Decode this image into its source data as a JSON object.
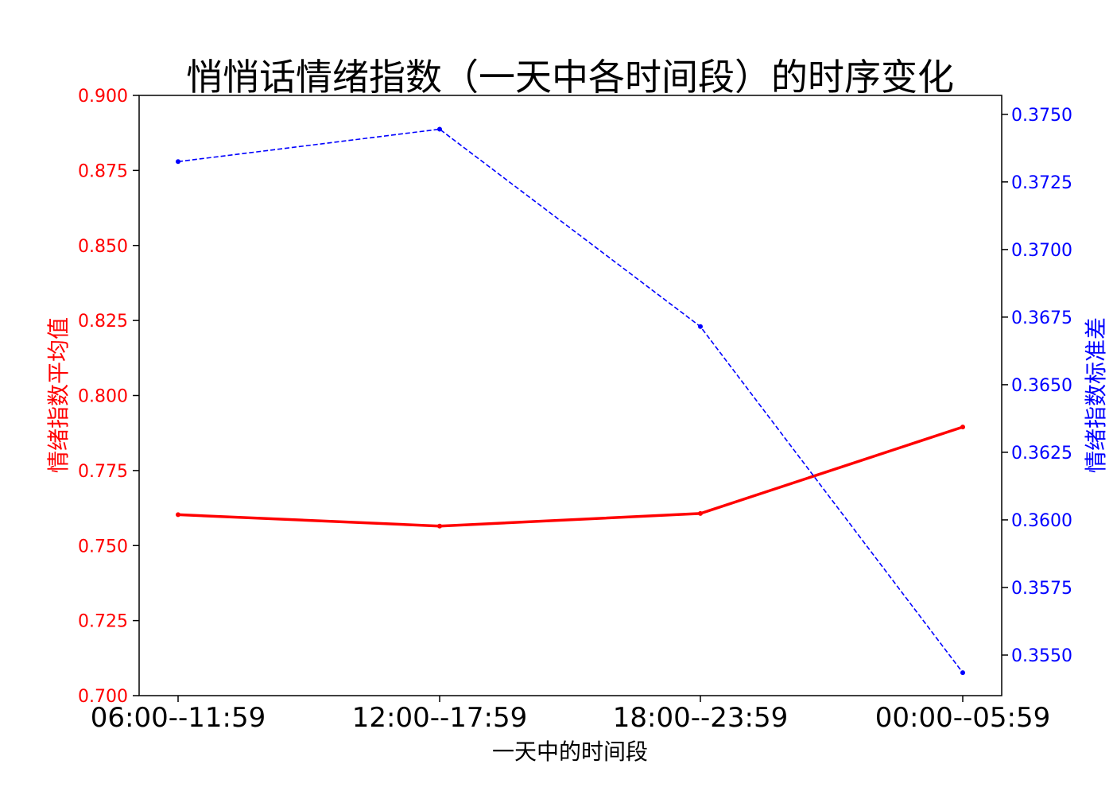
{
  "chart_data": {
    "type": "line",
    "title": "悄悄话情绪指数（一天中各时间段）的时序变化",
    "xlabel": "一天中的时间段",
    "categories": [
      "06:00--11:59",
      "12:00--17:59",
      "18:00--23:59",
      "00:00--05:59"
    ],
    "grid": false,
    "legend": "none",
    "y_left": {
      "label": "情绪指数平均值",
      "color": "#ff0000",
      "lim": [
        0.7,
        0.9
      ],
      "ticks": [
        "0.700",
        "0.725",
        "0.750",
        "0.775",
        "0.800",
        "0.825",
        "0.850",
        "0.875",
        "0.900"
      ]
    },
    "y_right": {
      "label": "情绪指数标准差",
      "color": "#0000ff",
      "lim": [
        0.3535,
        0.3757
      ],
      "ticks": [
        "0.3550",
        "0.3575",
        "0.3600",
        "0.3625",
        "0.3650",
        "0.3675",
        "0.3700",
        "0.3725",
        "0.3750"
      ]
    },
    "series": [
      {
        "axis": "left",
        "color": "#ff0000",
        "style": "solid",
        "values": [
          0.7603,
          0.7565,
          0.7607,
          0.7895
        ]
      },
      {
        "axis": "right",
        "color": "#0000ff",
        "style": "dashed",
        "values": [
          0.37325,
          0.37445,
          0.36715,
          0.35435
        ]
      }
    ]
  }
}
